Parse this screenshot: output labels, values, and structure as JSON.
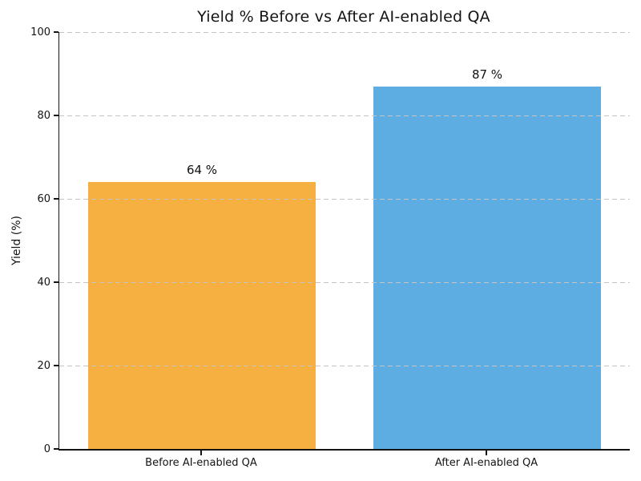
{
  "chart_data": {
    "type": "bar",
    "title": "Yield % Before vs After AI-enabled QA",
    "categories": [
      "Before AI-enabled QA",
      "After AI-enabled QA"
    ],
    "values": [
      64,
      87
    ],
    "value_labels": [
      "64 %",
      "87 %"
    ],
    "xlabel": "",
    "ylabel": "Yield (%)",
    "ylim": [
      0,
      100
    ],
    "yticks": [
      0,
      20,
      40,
      60,
      80,
      100
    ],
    "bar_colors": [
      "#F5B041",
      "#5DADE2"
    ],
    "bar_width_fraction": 0.8,
    "grid": "horizontal dashed gridlines, drawn over bars",
    "grid_color": "#c7c2c2",
    "legend": "none",
    "spine_color": "#141414",
    "text_color": "#141414"
  }
}
